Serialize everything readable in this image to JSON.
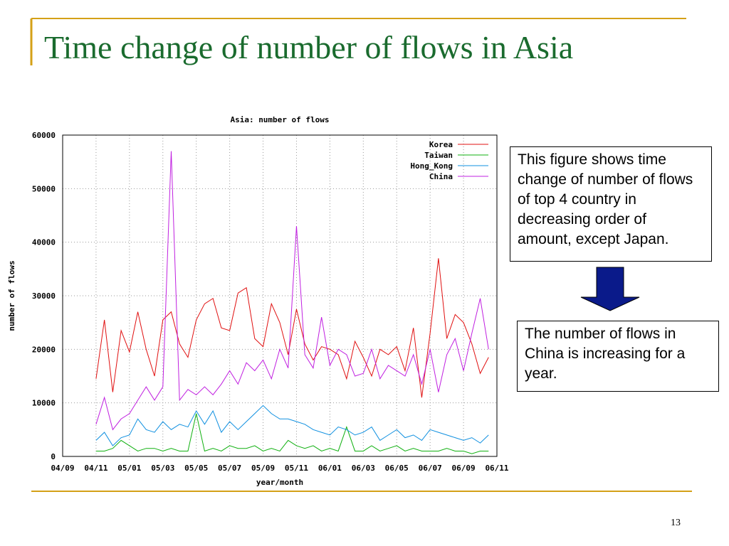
{
  "slide_title": "Time change of number of flows in Asia",
  "note1": "This figure shows time change of number of flows of top 4 country in decreasing order of amount, except Japan.",
  "note2": "The number of flows in China is increasing for a year.",
  "page_number": "13",
  "chart_data": {
    "type": "line",
    "title": "Asia: number of flows",
    "xlabel": "year/month",
    "ylabel": "number of flows",
    "xlim": [
      0,
      26
    ],
    "ylim": [
      0,
      60000
    ],
    "xticks": [
      {
        "value": 0,
        "label": "04/09"
      },
      {
        "value": 2,
        "label": "04/11"
      },
      {
        "value": 4,
        "label": "05/01"
      },
      {
        "value": 6,
        "label": "05/03"
      },
      {
        "value": 8,
        "label": "05/05"
      },
      {
        "value": 10,
        "label": "05/07"
      },
      {
        "value": 12,
        "label": "05/09"
      },
      {
        "value": 14,
        "label": "05/11"
      },
      {
        "value": 16,
        "label": "06/01"
      },
      {
        "value": 18,
        "label": "06/03"
      },
      {
        "value": 20,
        "label": "06/05"
      },
      {
        "value": 22,
        "label": "06/07"
      },
      {
        "value": 24,
        "label": "06/09"
      },
      {
        "value": 26,
        "label": "06/11"
      }
    ],
    "yticks": [
      0,
      10000,
      20000,
      30000,
      40000,
      50000,
      60000
    ],
    "grid": true,
    "legend": "upper right",
    "x": [
      2,
      2.5,
      3,
      3.5,
      4,
      4.5,
      5,
      5.5,
      6,
      6.5,
      7,
      7.5,
      8,
      8.5,
      9,
      9.5,
      10,
      10.5,
      11,
      11.5,
      12,
      12.5,
      13,
      13.5,
      14,
      14.5,
      15,
      15.5,
      16,
      16.5,
      17,
      17.5,
      18,
      18.5,
      19,
      19.5,
      20,
      20.5,
      21,
      21.5,
      22,
      22.5,
      23,
      23.5,
      24,
      24.5,
      25,
      25.5
    ],
    "series": [
      {
        "name": "Korea",
        "color": "#e01010",
        "values": [
          14500,
          25500,
          12000,
          23500,
          19500,
          27000,
          20000,
          15000,
          25500,
          27000,
          21000,
          18500,
          25500,
          28500,
          29500,
          24000,
          23500,
          30500,
          31500,
          22000,
          20500,
          28500,
          25000,
          19000,
          27500,
          21000,
          18000,
          20500,
          20000,
          19000,
          14500,
          21500,
          18500,
          15000,
          20000,
          19000,
          20500,
          16000,
          24000,
          11000,
          23000,
          37000,
          22000,
          26500,
          25000,
          21000,
          15500,
          18500
        ]
      },
      {
        "name": "Taiwan",
        "color": "#10b010",
        "values": [
          1000,
          1000,
          1500,
          3000,
          2000,
          1000,
          1500,
          1500,
          1000,
          1500,
          1000,
          1000,
          8000,
          1000,
          1500,
          1000,
          2000,
          1500,
          1500,
          2000,
          1000,
          1500,
          1000,
          3000,
          2000,
          1500,
          2000,
          1000,
          1500,
          1000,
          5500,
          1000,
          1000,
          2000,
          1000,
          1500,
          2000,
          1000,
          1500,
          1000,
          1000,
          1000,
          1500,
          1000,
          1000,
          500,
          1000,
          1000
        ]
      },
      {
        "name": "Hong_Kong",
        "color": "#1090e0",
        "values": [
          3000,
          4500,
          2000,
          3500,
          4000,
          7000,
          5000,
          4500,
          6500,
          5000,
          6000,
          5500,
          8500,
          6000,
          8500,
          4500,
          6500,
          5000,
          6500,
          8000,
          9500,
          8000,
          7000,
          7000,
          6500,
          6000,
          5000,
          4500,
          4000,
          5500,
          5000,
          4000,
          4500,
          5500,
          3000,
          4000,
          5000,
          3500,
          4000,
          3000,
          5000,
          4500,
          4000,
          3500,
          3000,
          3500,
          2500,
          4000
        ]
      },
      {
        "name": "China",
        "color": "#c020e0",
        "values": [
          6000,
          11000,
          5000,
          7000,
          8000,
          10500,
          13000,
          10500,
          13000,
          57000,
          10500,
          12500,
          11500,
          13000,
          11500,
          13500,
          16000,
          13500,
          17500,
          16000,
          18000,
          14500,
          20000,
          16500,
          43000,
          19000,
          16500,
          26000,
          17000,
          20000,
          19000,
          15000,
          15500,
          20000,
          14500,
          17000,
          16000,
          15000,
          19000,
          13500,
          20000,
          12000,
          19000,
          22000,
          16000,
          23000,
          29500,
          20000
        ]
      }
    ]
  }
}
